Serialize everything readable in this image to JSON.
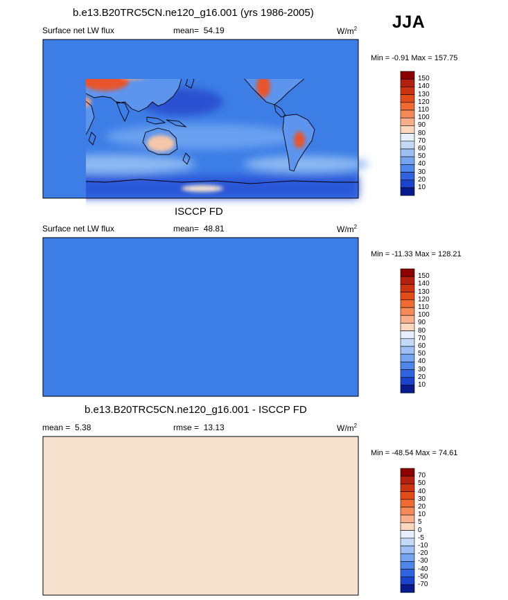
{
  "season": "JJA",
  "palette": {
    "ocean_blue": "#3d7ee6",
    "deep_blue": "#1a3fd0",
    "mid_blue": "#6aa0f0",
    "light_blue": "#a9cff5",
    "pale": "#f6e2cf",
    "salmon": "#f4a582",
    "orange_red": "#e8542a",
    "dark_red": "#8b0000",
    "coast": "#000000"
  },
  "panels": [
    {
      "title": "b.e13.B20TRC5CN.ne120_g16.001 (yrs 1986-2005)",
      "left_label": "Surface net LW flux",
      "stat_label": "mean=",
      "stat_value": "54.19",
      "units": "W/m",
      "units_sup": "2",
      "minmax": "Min =  -0.91 Max = 157.75",
      "colorbar": [
        "150",
        "140",
        "130",
        "120",
        "110",
        "100",
        "90",
        "80",
        "70",
        "60",
        "50",
        "40",
        "30",
        "20",
        "10"
      ]
    },
    {
      "title": "ISCCP FD",
      "left_label": "Surface net LW flux",
      "stat_label": "mean=",
      "stat_value": "48.81",
      "units": "W/m",
      "units_sup": "2",
      "minmax": "Min = -11.33 Max = 128.21",
      "colorbar": [
        "150",
        "140",
        "130",
        "120",
        "110",
        "100",
        "90",
        "80",
        "70",
        "60",
        "50",
        "40",
        "30",
        "20",
        "10"
      ]
    },
    {
      "title": "b.e13.B20TRC5CN.ne120_g16.001 - ISCCP FD",
      "left_label": "mean =",
      "left_value": "5.38",
      "stat_label": "rmse =",
      "stat_value": "13.13",
      "units": "W/m",
      "units_sup": "2",
      "minmax": "Min = -48.54 Max =  74.61",
      "colorbar": [
        "70",
        "50",
        "40",
        "30",
        "20",
        "10",
        "5",
        "0",
        "-5",
        "-10",
        "-20",
        "-30",
        "-40",
        "-50",
        "-70"
      ]
    }
  ]
}
